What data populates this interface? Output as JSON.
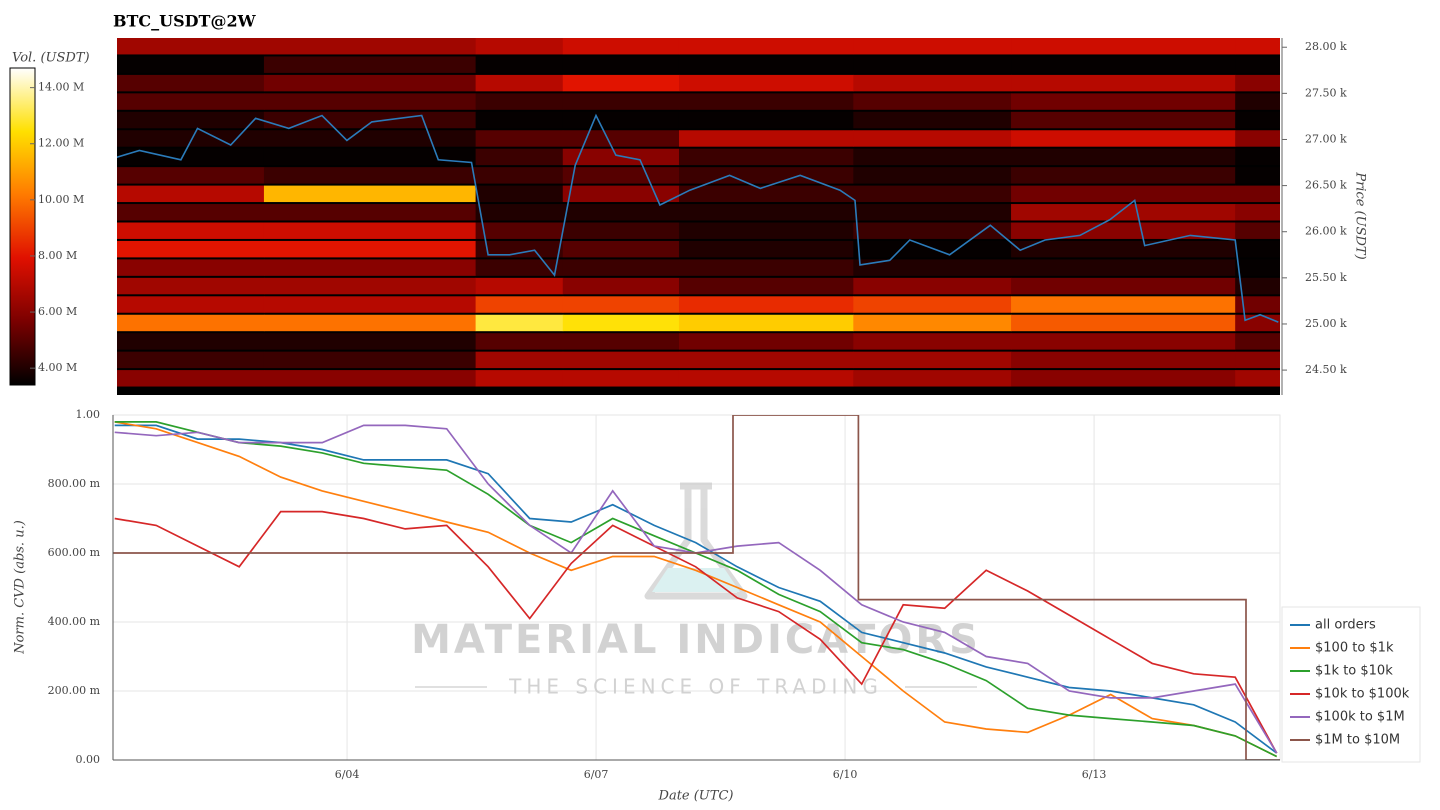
{
  "chart_data": [
    {
      "type": "heatmap",
      "title": "BTC_USDT@2W",
      "y_label": "Price (USDT)",
      "colorbar_label": "Vol. (USDT)",
      "xlim": [
        1.23,
        15.24
      ],
      "ylim": [
        24230,
        28100
      ],
      "yticks": [
        {
          "value": 24500,
          "label": "24.50 k"
        },
        {
          "value": 25000,
          "label": "25.00 k"
        },
        {
          "value": 25500,
          "label": "25.50 k"
        },
        {
          "value": 26000,
          "label": "26.00 k"
        },
        {
          "value": 26500,
          "label": "26.50 k"
        },
        {
          "value": 27000,
          "label": "27.00 k"
        },
        {
          "value": 27500,
          "label": "27.50 k"
        },
        {
          "value": 28000,
          "label": "28.00 k"
        }
      ],
      "clim": [
        3400000,
        14700000
      ],
      "cticks": [
        {
          "value": 4000000,
          "label": "4.00 M"
        },
        {
          "value": 6000000,
          "label": "6.00 M"
        },
        {
          "value": 8000000,
          "label": "8.00 M"
        },
        {
          "value": 10000000,
          "label": "10.00 M"
        },
        {
          "value": 12000000,
          "label": "12.00 M"
        },
        {
          "value": 14000000,
          "label": "14.00 M"
        }
      ],
      "colorscale": [
        "#000000",
        "#7a0000",
        "#e01000",
        "#ff7a00",
        "#ffe000",
        "#ffffff"
      ],
      "x_edges": [
        1.23,
        3.0,
        5.55,
        6.6,
        8.0,
        10.1,
        12.0,
        14.7,
        15.24
      ],
      "y_edges": [
        24300,
        24500,
        24700,
        24900,
        25100,
        25300,
        25500,
        25700,
        25900,
        26100,
        26300,
        26500,
        26700,
        26900,
        27100,
        27300,
        27500,
        27700,
        27900,
        28100
      ],
      "z": [
        [
          6000000,
          6000000,
          7000000,
          7000000,
          7000000,
          6500000,
          6000000,
          6500000
        ],
        [
          4500000,
          4500000,
          6500000,
          6500000,
          6500000,
          6500000,
          6000000,
          6000000
        ],
        [
          4000000,
          4000000,
          5000000,
          5000000,
          5500000,
          6000000,
          6000000,
          5000000
        ],
        [
          10000000,
          10000000,
          13000000,
          12500000,
          12000000,
          10500000,
          9500000,
          6000000
        ],
        [
          7000000,
          7000000,
          9000000,
          9000000,
          8500000,
          9000000,
          10000000,
          5500000
        ],
        [
          6500000,
          6500000,
          7000000,
          6000000,
          5000000,
          6000000,
          5500000,
          4000000
        ],
        [
          6000000,
          6000000,
          4500000,
          4500000,
          4500000,
          4000000,
          4000000,
          3500000
        ],
        [
          8000000,
          8000000,
          4500000,
          5000000,
          4000000,
          3500000,
          4000000,
          3500000
        ],
        [
          7500000,
          7500000,
          5000000,
          4500000,
          4000000,
          4500000,
          6000000,
          5000000
        ],
        [
          5000000,
          5000000,
          4000000,
          4000000,
          4000000,
          4000000,
          6500000,
          6000000
        ],
        [
          7000000,
          11500000,
          4000000,
          6000000,
          4500000,
          4500000,
          5500000,
          5500000
        ],
        [
          5000000,
          4500000,
          4500000,
          5000000,
          4500000,
          4000000,
          4500000,
          3500000
        ],
        [
          3500000,
          3500000,
          4500000,
          6000000,
          4500000,
          4000000,
          4000000,
          3500000
        ],
        [
          4000000,
          4000000,
          5000000,
          5000000,
          7000000,
          7000000,
          7500000,
          6000000
        ],
        [
          4000000,
          4500000,
          3500000,
          3500000,
          3500000,
          4000000,
          5000000,
          3500000
        ],
        [
          5000000,
          5000000,
          4500000,
          4500000,
          4500000,
          5000000,
          5500000,
          4000000
        ],
        [
          5000000,
          5500000,
          7000000,
          8000000,
          7500000,
          7000000,
          7000000,
          6000000
        ],
        [
          3500000,
          4500000,
          3500000,
          3500000,
          3500000,
          3500000,
          3500000,
          3500000
        ],
        [
          6500000,
          6500000,
          7000000,
          7500000,
          7500000,
          7500000,
          7500000,
          7500000
        ]
      ],
      "line": {
        "color": "#2b7bba",
        "x": [
          1.2,
          1.5,
          2.0,
          2.2,
          2.6,
          2.9,
          3.3,
          3.7,
          4.0,
          4.3,
          4.9,
          5.1,
          5.5,
          5.7,
          5.96,
          6.26,
          6.5,
          6.75,
          7.0,
          7.24,
          7.53,
          7.77,
          8.13,
          8.61,
          8.98,
          9.46,
          9.94,
          10.12,
          10.18,
          10.54,
          10.78,
          11.26,
          11.75,
          12.11,
          12.41,
          12.83,
          13.19,
          13.49,
          13.61,
          14.16,
          14.7,
          14.82,
          15.0,
          15.22
        ],
        "values": [
          26800,
          26880,
          26780,
          27120,
          26940,
          27230,
          27120,
          27260,
          26990,
          27190,
          27260,
          26780,
          26750,
          25750,
          25750,
          25800,
          25530,
          26720,
          27260,
          26830,
          26780,
          26290,
          26450,
          26610,
          26470,
          26610,
          26450,
          26340,
          25640,
          25690,
          25910,
          25750,
          26070,
          25800,
          25910,
          25960,
          26130,
          26340,
          25850,
          25960,
          25910,
          25040,
          25100,
          25020
        ]
      }
    },
    {
      "type": "line",
      "x_label": "Date (UTC)",
      "y_label": "Norm. CVD (abs. u.)",
      "xlim": [
        1.18,
        15.24
      ],
      "ylim": [
        0,
        1
      ],
      "xticks": [
        {
          "value": 4,
          "label": "6/04"
        },
        {
          "value": 7,
          "label": "6/07"
        },
        {
          "value": 10,
          "label": "6/10"
        },
        {
          "value": 13,
          "label": "6/13"
        }
      ],
      "yticks": [
        {
          "value": 0,
          "label": "0.00"
        },
        {
          "value": 0.2,
          "label": "200.00 m"
        },
        {
          "value": 0.4,
          "label": "400.00 m"
        },
        {
          "value": 0.6,
          "label": "600.00 m"
        },
        {
          "value": 0.8,
          "label": "800.00 m"
        },
        {
          "value": 1,
          "label": "1.00"
        }
      ],
      "grid": true,
      "legend": "right",
      "watermark": {
        "title": "MATERIAL INDICATORS",
        "subtitle": "THE SCIENCE OF TRADING"
      },
      "x": [
        1.2,
        1.7,
        2.2,
        2.7,
        3.2,
        3.7,
        4.2,
        4.7,
        5.2,
        5.7,
        6.2,
        6.7,
        7.2,
        7.7,
        8.2,
        8.7,
        9.2,
        9.7,
        10.2,
        10.7,
        11.2,
        11.7,
        12.2,
        12.7,
        13.2,
        13.7,
        14.2,
        14.7,
        15.2
      ],
      "series": [
        {
          "name": "all orders",
          "color": "#1f77b4",
          "values": [
            0.97,
            0.97,
            0.93,
            0.93,
            0.92,
            0.9,
            0.87,
            0.87,
            0.87,
            0.83,
            0.7,
            0.69,
            0.74,
            0.68,
            0.63,
            0.56,
            0.5,
            0.46,
            0.37,
            0.34,
            0.31,
            0.27,
            0.24,
            0.21,
            0.2,
            0.18,
            0.16,
            0.11,
            0.02
          ]
        },
        {
          "name": "$100 to $1k",
          "color": "#ff7f0e",
          "values": [
            0.98,
            0.96,
            0.92,
            0.88,
            0.82,
            0.78,
            0.75,
            0.72,
            0.69,
            0.66,
            0.6,
            0.55,
            0.59,
            0.59,
            0.55,
            0.5,
            0.45,
            0.4,
            0.3,
            0.2,
            0.11,
            0.09,
            0.08,
            0.13,
            0.19,
            0.12,
            0.1,
            0.07,
            0.01
          ]
        },
        {
          "name": "$1k to $10k",
          "color": "#2ca02c",
          "values": [
            0.98,
            0.98,
            0.95,
            0.92,
            0.91,
            0.89,
            0.86,
            0.85,
            0.84,
            0.77,
            0.68,
            0.63,
            0.7,
            0.65,
            0.6,
            0.55,
            0.48,
            0.43,
            0.34,
            0.32,
            0.28,
            0.23,
            0.15,
            0.13,
            0.12,
            0.11,
            0.1,
            0.07,
            0.01
          ]
        },
        {
          "name": "$10k to $100k",
          "color": "#d62728",
          "values": [
            0.7,
            0.68,
            0.62,
            0.56,
            0.72,
            0.72,
            0.7,
            0.67,
            0.68,
            0.56,
            0.41,
            0.57,
            0.68,
            0.62,
            0.56,
            0.47,
            0.43,
            0.35,
            0.22,
            0.45,
            0.44,
            0.55,
            0.49,
            0.42,
            0.35,
            0.28,
            0.25,
            0.24,
            0.02
          ]
        },
        {
          "name": "$100k to $1M",
          "color": "#9467bd",
          "values": [
            0.95,
            0.94,
            0.95,
            0.92,
            0.92,
            0.92,
            0.97,
            0.97,
            0.96,
            0.8,
            0.68,
            0.6,
            0.78,
            0.62,
            0.6,
            0.62,
            0.63,
            0.55,
            0.45,
            0.4,
            0.37,
            0.3,
            0.28,
            0.2,
            0.18,
            0.18,
            0.2,
            0.22,
            0.02
          ]
        },
        {
          "name": "$1M to $10M",
          "color": "#8c564b",
          "x": [
            1.18,
            8.65,
            8.65,
            10.16,
            10.16,
            14.83,
            14.83,
            15.24
          ],
          "values": [
            0.6,
            0.6,
            1,
            1,
            0.465,
            0.465,
            0,
            0
          ]
        }
      ]
    }
  ]
}
